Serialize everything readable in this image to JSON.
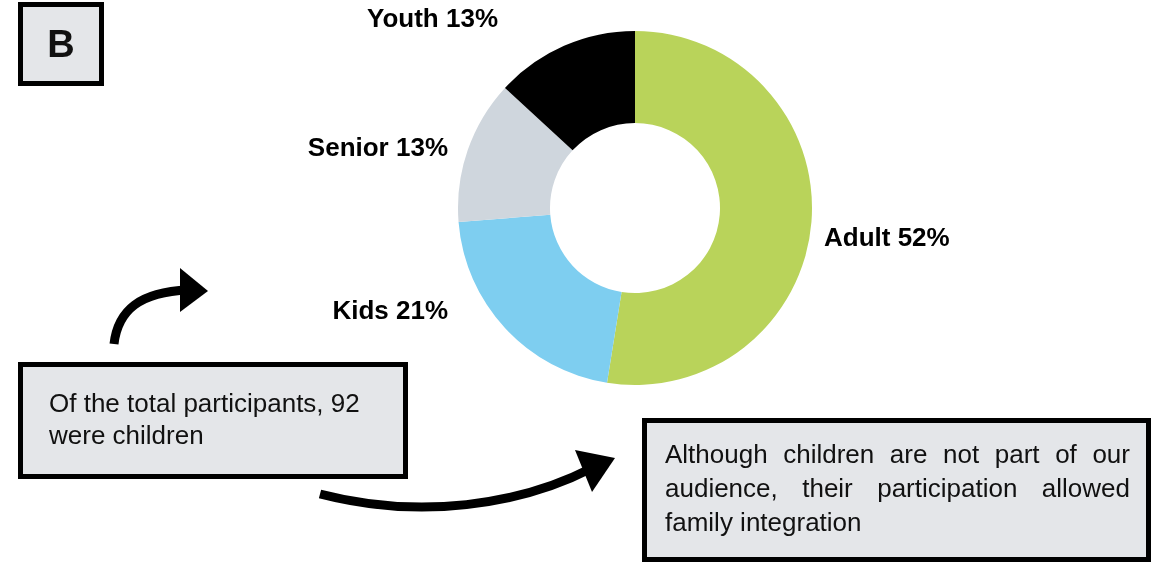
{
  "chart_data": {
    "type": "donut",
    "categories": [
      "Adult",
      "Kids",
      "Senior",
      "Youth"
    ],
    "values": [
      52,
      21,
      13,
      13
    ],
    "colors": [
      "#b9d35a",
      "#7ecef0",
      "#cfd6dd",
      "#000000"
    ],
    "value_labels": [
      "52%",
      "21%",
      "13%",
      "13%"
    ],
    "legend": false,
    "annotations": [
      "B",
      "Of the total participants, 92 were children",
      "Although children are not part of our audience, their participation allowed family integration"
    ]
  }
}
